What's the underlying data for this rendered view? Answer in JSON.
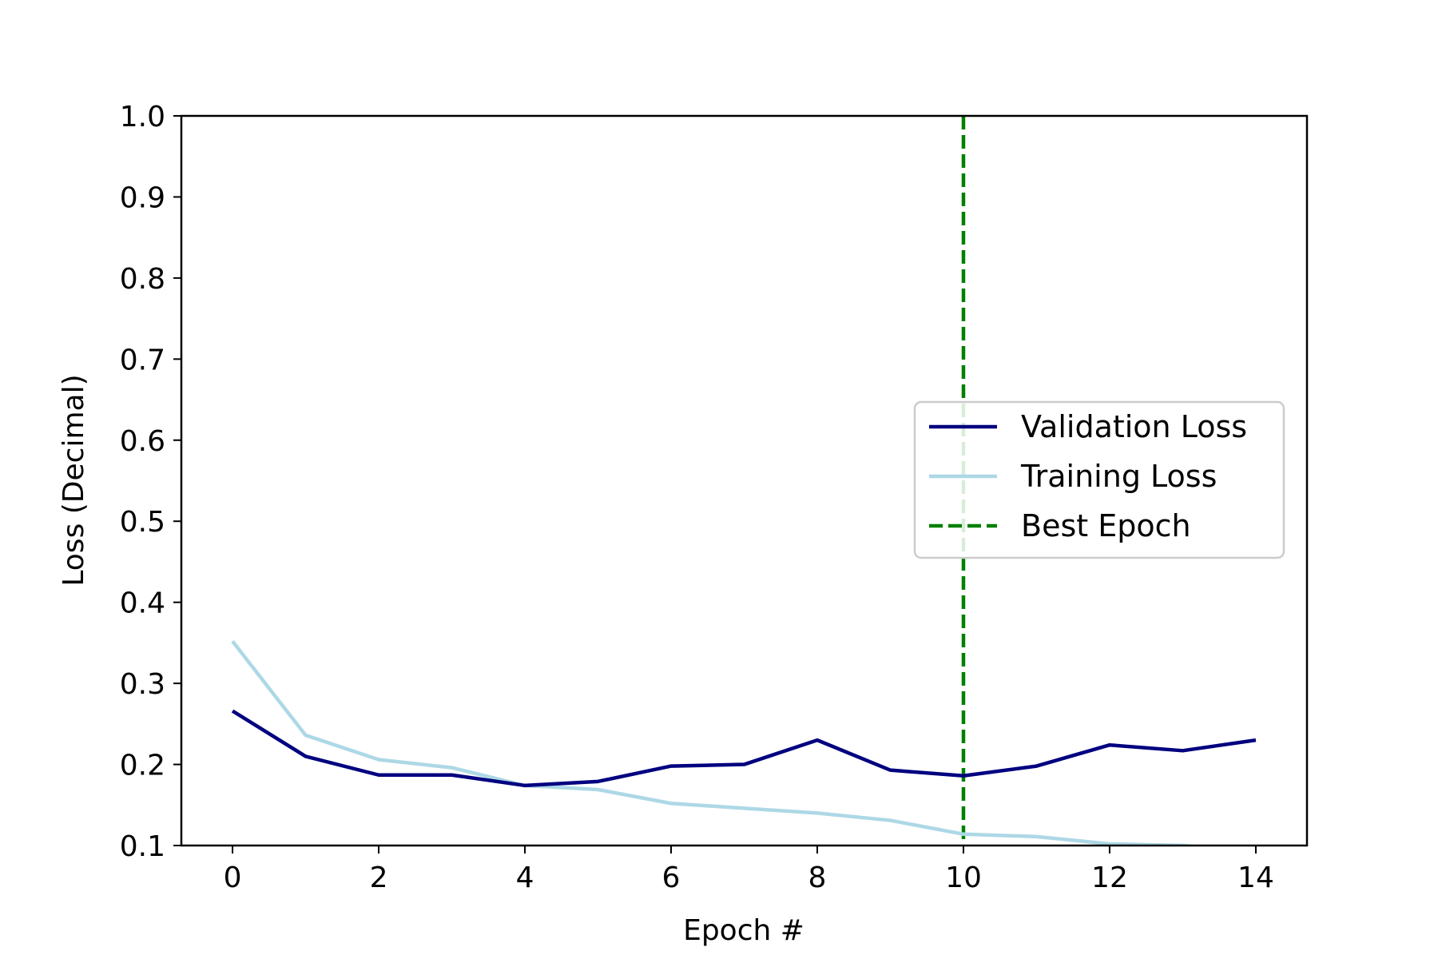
{
  "chart_data": {
    "type": "line",
    "title": "",
    "xlabel": "Epoch #",
    "ylabel": "Loss (Decimal)",
    "xlim": [
      -0.7,
      14.7
    ],
    "ylim": [
      0.1,
      1.0
    ],
    "x_ticks": [
      0,
      2,
      4,
      6,
      8,
      10,
      12,
      14
    ],
    "y_ticks": [
      0.1,
      0.2,
      0.3,
      0.4,
      0.5,
      0.6,
      0.7,
      0.8,
      0.9,
      1.0
    ],
    "x_tick_labels": [
      "0",
      "2",
      "4",
      "6",
      "8",
      "10",
      "12",
      "14"
    ],
    "y_tick_labels": [
      "0.1",
      "0.2",
      "0.3",
      "0.4",
      "0.5",
      "0.6",
      "0.7",
      "0.8",
      "0.9",
      "1.0"
    ],
    "grid": false,
    "legend_position": "center-right",
    "series": [
      {
        "name": "Validation Loss",
        "color": "#000080",
        "style": "solid",
        "x": [
          0,
          1,
          2,
          3,
          4,
          5,
          6,
          7,
          8,
          9,
          10,
          11,
          12,
          13,
          14
        ],
        "values": [
          0.266,
          0.21,
          0.187,
          0.187,
          0.174,
          0.179,
          0.198,
          0.2,
          0.23,
          0.193,
          0.186,
          0.198,
          0.224,
          0.217,
          0.23
        ]
      },
      {
        "name": "Training Loss",
        "color": "#add8e6",
        "style": "solid",
        "x": [
          0,
          1,
          2,
          3,
          4,
          5,
          6,
          7,
          8,
          9,
          10,
          11,
          12,
          13,
          14
        ],
        "values": [
          0.352,
          0.236,
          0.206,
          0.196,
          0.174,
          0.169,
          0.152,
          0.146,
          0.14,
          0.131,
          0.114,
          0.111,
          0.102,
          0.1,
          0.092
        ]
      }
    ],
    "vlines": [
      {
        "name": "Best Epoch",
        "x": 10,
        "color": "#008000",
        "style": "dashed"
      }
    ]
  }
}
